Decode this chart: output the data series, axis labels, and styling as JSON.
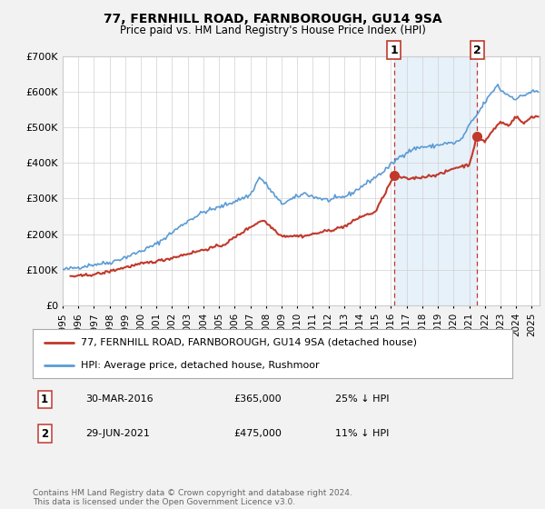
{
  "title": "77, FERNHILL ROAD, FARNBOROUGH, GU14 9SA",
  "subtitle": "Price paid vs. HM Land Registry's House Price Index (HPI)",
  "hpi_label": "HPI: Average price, detached house, Rushmoor",
  "property_label": "77, FERNHILL ROAD, FARNBOROUGH, GU14 9SA (detached house)",
  "hpi_color": "#aec6e8",
  "hpi_line_color": "#5b9bd5",
  "property_color": "#c0392b",
  "background_color": "#f2f2f2",
  "plot_background": "#ffffff",
  "ylim": [
    0,
    700000
  ],
  "yticks": [
    0,
    100000,
    200000,
    300000,
    400000,
    500000,
    600000,
    700000
  ],
  "ytick_labels": [
    "£0",
    "£100K",
    "£200K",
    "£300K",
    "£400K",
    "£500K",
    "£600K",
    "£700K"
  ],
  "xstart": 1995.0,
  "xend": 2025.5,
  "transactions": [
    {
      "year": 2016.2,
      "price": 365000,
      "label": "1",
      "date": "30-MAR-2016",
      "price_str": "£365,000",
      "pct": "25% ↓ HPI"
    },
    {
      "year": 2021.5,
      "price": 475000,
      "label": "2",
      "date": "29-JUN-2021",
      "price_str": "£475,000",
      "pct": "11% ↓ HPI"
    }
  ],
  "footer": "Contains HM Land Registry data © Crown copyright and database right 2024.\nThis data is licensed under the Open Government Licence v3.0."
}
